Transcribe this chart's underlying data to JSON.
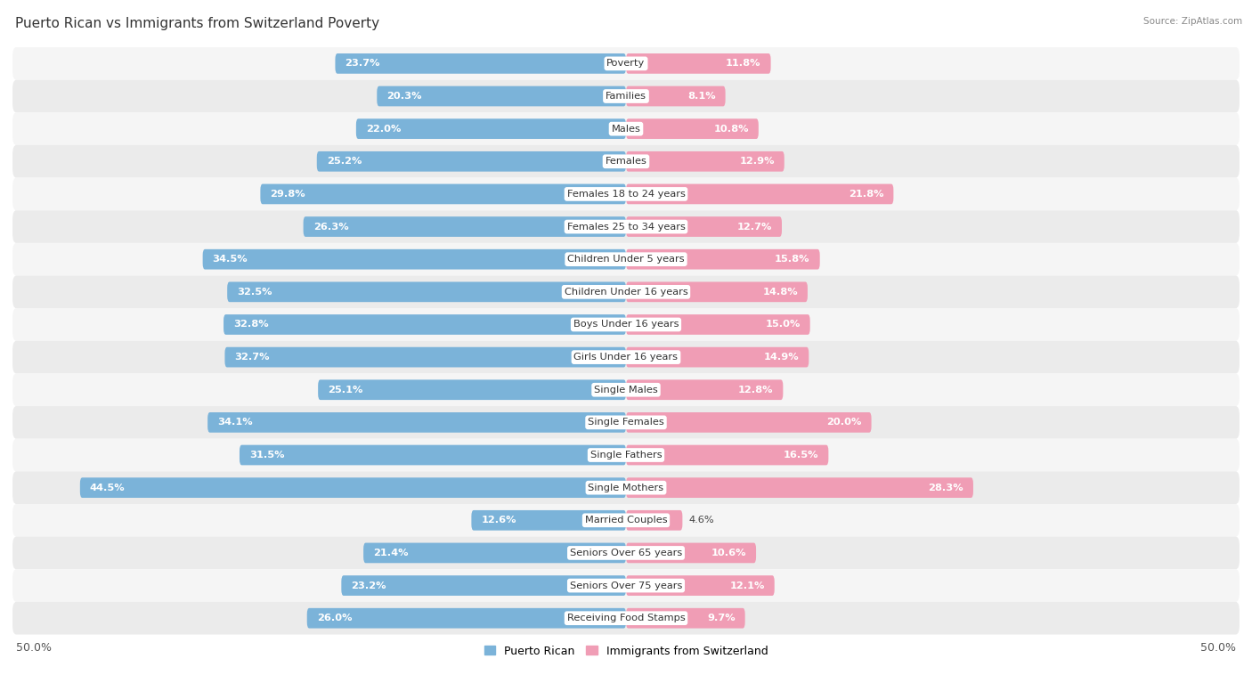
{
  "title": "Puerto Rican vs Immigrants from Switzerland Poverty",
  "source": "Source: ZipAtlas.com",
  "categories": [
    "Poverty",
    "Families",
    "Males",
    "Females",
    "Females 18 to 24 years",
    "Females 25 to 34 years",
    "Children Under 5 years",
    "Children Under 16 years",
    "Boys Under 16 years",
    "Girls Under 16 years",
    "Single Males",
    "Single Females",
    "Single Fathers",
    "Single Mothers",
    "Married Couples",
    "Seniors Over 65 years",
    "Seniors Over 75 years",
    "Receiving Food Stamps"
  ],
  "puerto_rican": [
    23.7,
    20.3,
    22.0,
    25.2,
    29.8,
    26.3,
    34.5,
    32.5,
    32.8,
    32.7,
    25.1,
    34.1,
    31.5,
    44.5,
    12.6,
    21.4,
    23.2,
    26.0
  ],
  "switzerland": [
    11.8,
    8.1,
    10.8,
    12.9,
    21.8,
    12.7,
    15.8,
    14.8,
    15.0,
    14.9,
    12.8,
    20.0,
    16.5,
    28.3,
    4.6,
    10.6,
    12.1,
    9.7
  ],
  "blue_color": "#7bb3d9",
  "pink_color": "#f09db5",
  "row_color_even": "#f5f5f5",
  "row_color_odd": "#ebebeb",
  "max_val": 50.0,
  "title_fontsize": 11,
  "value_fontsize": 8.2,
  "label_fontsize": 8.2,
  "legend_blue": "Puerto Rican",
  "legend_pink": "Immigrants from Switzerland",
  "bar_height": 0.62
}
